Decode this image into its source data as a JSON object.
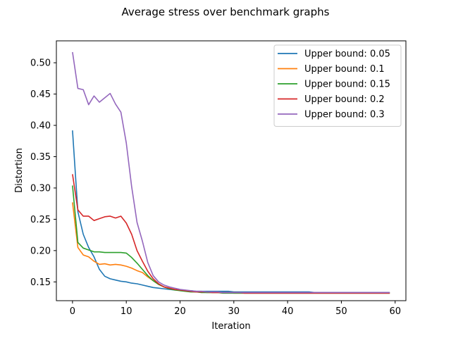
{
  "chart_data": {
    "type": "line",
    "title": "Average stress over benchmark graphs",
    "xlabel": "Iteration",
    "ylabel": "Distortion",
    "xlim": [
      -3,
      62
    ],
    "ylim": [
      0.12,
      0.535
    ],
    "xticks": [
      0,
      10,
      20,
      30,
      40,
      50,
      60
    ],
    "yticks": [
      0.15,
      0.2,
      0.25,
      0.3,
      0.35,
      0.4,
      0.45,
      0.5
    ],
    "ytick_labels": [
      "0.15",
      "0.20",
      "0.25",
      "0.30",
      "0.35",
      "0.40",
      "0.45",
      "0.50"
    ],
    "grid": false,
    "legend_position": "top-right",
    "series": [
      {
        "name": "Upper bound: 0.05",
        "color": "#1f77b4",
        "values": [
          0.392,
          0.262,
          0.226,
          0.205,
          0.19,
          0.17,
          0.159,
          0.155,
          0.153,
          0.151,
          0.15,
          0.148,
          0.147,
          0.145,
          0.143,
          0.141,
          0.14,
          0.139,
          0.138,
          0.137,
          0.137,
          0.136,
          0.136,
          0.135,
          0.135,
          0.135,
          0.135,
          0.135,
          0.135,
          0.135,
          0.134,
          0.134,
          0.134,
          0.134,
          0.134,
          0.134,
          0.134,
          0.134,
          0.134,
          0.134,
          0.134,
          0.134,
          0.134,
          0.134,
          0.134,
          0.133,
          0.133,
          0.133,
          0.133,
          0.133,
          0.133,
          0.133,
          0.133,
          0.133,
          0.133,
          0.133,
          0.133,
          0.133,
          0.133,
          0.133
        ]
      },
      {
        "name": "Upper bound: 0.1",
        "color": "#ff7f0e",
        "values": [
          0.277,
          0.205,
          0.193,
          0.19,
          0.183,
          0.178,
          0.179,
          0.177,
          0.178,
          0.177,
          0.175,
          0.172,
          0.168,
          0.165,
          0.158,
          0.152,
          0.146,
          0.142,
          0.14,
          0.138,
          0.137,
          0.136,
          0.135,
          0.134,
          0.134,
          0.133,
          0.133,
          0.133,
          0.133,
          0.133,
          0.132,
          0.132,
          0.132,
          0.132,
          0.132,
          0.132,
          0.132,
          0.132,
          0.132,
          0.132,
          0.132,
          0.132,
          0.132,
          0.132,
          0.132,
          0.132,
          0.132,
          0.132,
          0.132,
          0.132,
          0.132,
          0.132,
          0.132,
          0.132,
          0.132,
          0.132,
          0.132,
          0.132,
          0.132,
          0.132
        ]
      },
      {
        "name": "Upper bound: 0.15",
        "color": "#2ca02c",
        "values": [
          0.304,
          0.213,
          0.204,
          0.201,
          0.198,
          0.198,
          0.197,
          0.197,
          0.197,
          0.197,
          0.196,
          0.189,
          0.18,
          0.17,
          0.16,
          0.152,
          0.146,
          0.142,
          0.139,
          0.137,
          0.136,
          0.135,
          0.134,
          0.134,
          0.133,
          0.133,
          0.133,
          0.133,
          0.132,
          0.132,
          0.132,
          0.132,
          0.132,
          0.132,
          0.132,
          0.132,
          0.132,
          0.132,
          0.132,
          0.132,
          0.132,
          0.132,
          0.132,
          0.132,
          0.132,
          0.132,
          0.132,
          0.132,
          0.132,
          0.132,
          0.132,
          0.132,
          0.132,
          0.132,
          0.132,
          0.132,
          0.132,
          0.132,
          0.132,
          0.132
        ]
      },
      {
        "name": "Upper bound: 0.2",
        "color": "#d62728",
        "values": [
          0.322,
          0.265,
          0.255,
          0.255,
          0.248,
          0.251,
          0.254,
          0.255,
          0.252,
          0.255,
          0.244,
          0.226,
          0.2,
          0.183,
          0.167,
          0.155,
          0.147,
          0.142,
          0.14,
          0.138,
          0.137,
          0.136,
          0.135,
          0.134,
          0.134,
          0.134,
          0.133,
          0.133,
          0.133,
          0.133,
          0.133,
          0.133,
          0.132,
          0.132,
          0.132,
          0.132,
          0.132,
          0.132,
          0.132,
          0.132,
          0.132,
          0.132,
          0.132,
          0.132,
          0.132,
          0.132,
          0.132,
          0.132,
          0.132,
          0.132,
          0.132,
          0.132,
          0.132,
          0.132,
          0.132,
          0.132,
          0.132,
          0.132,
          0.132,
          0.132
        ]
      },
      {
        "name": "Upper bound: 0.3",
        "color": "#9467bd",
        "values": [
          0.517,
          0.459,
          0.457,
          0.433,
          0.447,
          0.437,
          0.444,
          0.451,
          0.434,
          0.421,
          0.372,
          0.302,
          0.245,
          0.215,
          0.181,
          0.16,
          0.15,
          0.145,
          0.142,
          0.14,
          0.138,
          0.137,
          0.136,
          0.135,
          0.135,
          0.134,
          0.134,
          0.134,
          0.133,
          0.133,
          0.133,
          0.133,
          0.133,
          0.133,
          0.133,
          0.133,
          0.133,
          0.133,
          0.133,
          0.133,
          0.133,
          0.133,
          0.133,
          0.133,
          0.133,
          0.133,
          0.133,
          0.133,
          0.133,
          0.133,
          0.133,
          0.133,
          0.133,
          0.133,
          0.133,
          0.133,
          0.133,
          0.133,
          0.133,
          0.133
        ]
      }
    ]
  }
}
